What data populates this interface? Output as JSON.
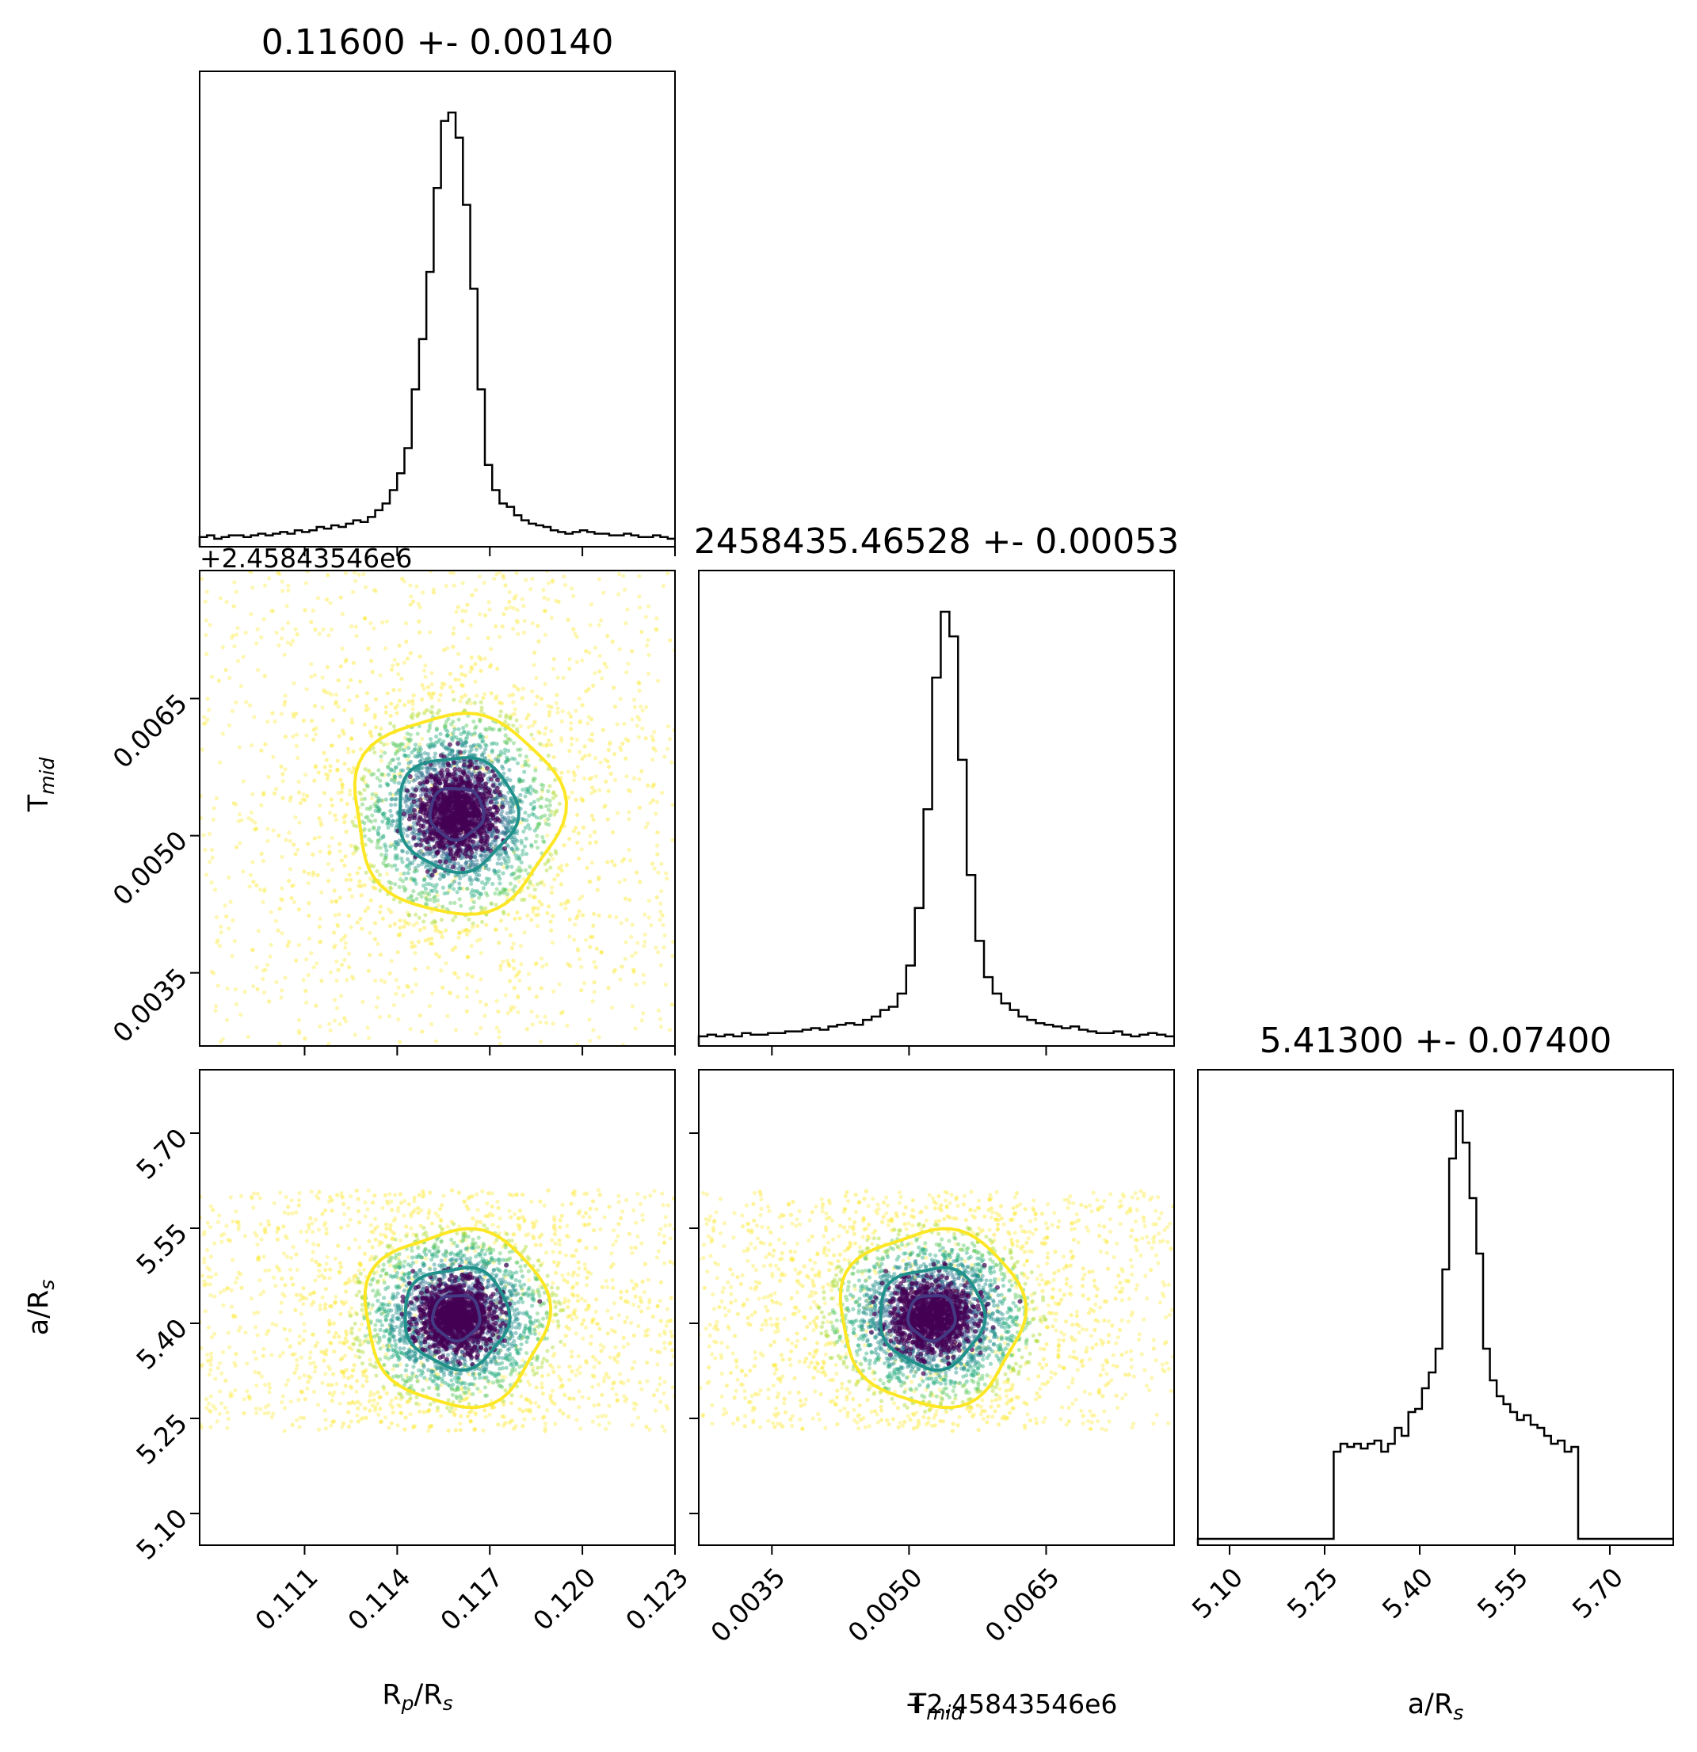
{
  "chart_data": {
    "type": "corner",
    "parameters": [
      {
        "key": "rprs",
        "label_main": "R",
        "label_sub": "p",
        "label_tail": "/R",
        "label_sub2": "s",
        "title": "0.11600 +- 0.00140",
        "range": [
          0.1076,
          0.123
        ],
        "ticks": [
          0.111,
          0.114,
          0.117,
          0.12,
          0.123
        ],
        "tick_labels": [
          "0.111",
          "0.114",
          "0.117",
          "0.120",
          "0.123"
        ],
        "median": 0.11592,
        "width": 0.0007,
        "spread": 0.0021
      },
      {
        "key": "tmid",
        "label_main": "T",
        "label_sub": "mid",
        "label_tail": "",
        "label_sub2": "",
        "title": "2458435.46528 +- 0.00053",
        "offset_text": "+2.45843546e6",
        "range": [
          0.0027,
          0.0079
        ],
        "ticks": [
          0.0035,
          0.005,
          0.0065
        ],
        "tick_labels": [
          "0.0035",
          "0.0050",
          "0.0065"
        ],
        "median": 0.00525,
        "width": 0.00025,
        "spread": 0.0008
      },
      {
        "key": "ars",
        "label_main": "a/R",
        "label_sub": "s",
        "label_tail": "",
        "label_sub2": "",
        "title": "5.41300 +- 0.07400",
        "range": [
          5.05,
          5.8
        ],
        "ticks": [
          5.1,
          5.25,
          5.4,
          5.55,
          5.7
        ],
        "tick_labels": [
          "5.10",
          "5.25",
          "5.40",
          "5.55",
          "5.70"
        ],
        "median": 5.41,
        "width": 0.03,
        "spread": 0.1,
        "prior": [
          5.23,
          5.61
        ]
      }
    ],
    "contour_levels": [
      {
        "name": "inner",
        "color": "#443983",
        "rx": 0.45
      },
      {
        "name": "middle",
        "color": "#21918c",
        "rx": 1.0
      },
      {
        "name": "outer",
        "color": "#fde725",
        "rx": 1.75
      }
    ],
    "point_colors": [
      "#440154",
      "#472d7b",
      "#3b528b",
      "#2c728e",
      "#21918c",
      "#28ae80",
      "#5ec962",
      "#addc30",
      "#fde725"
    ],
    "histograms": {
      "rprs": [
        2,
        3,
        1,
        2,
        3,
        3,
        2,
        3,
        4,
        3,
        4,
        5,
        4,
        6,
        5,
        6,
        8,
        7,
        9,
        8,
        10,
        12,
        11,
        14,
        18,
        22,
        30,
        40,
        55,
        90,
        120,
        160,
        210,
        250,
        255,
        240,
        200,
        150,
        90,
        45,
        30,
        22,
        20,
        15,
        12,
        10,
        9,
        8,
        6,
        5,
        4,
        5,
        6,
        5,
        4,
        4,
        3,
        3,
        4,
        3,
        2,
        2,
        3,
        2,
        1
      ],
      "tmid": [
        2,
        3,
        2,
        3,
        2,
        4,
        3,
        3,
        4,
        4,
        5,
        5,
        6,
        7,
        6,
        8,
        9,
        10,
        9,
        12,
        14,
        18,
        20,
        28,
        45,
        80,
        140,
        220,
        260,
        245,
        170,
        100,
        60,
        38,
        28,
        22,
        18,
        14,
        12,
        10,
        9,
        8,
        7,
        8,
        6,
        5,
        4,
        4,
        5,
        3,
        2,
        3,
        4,
        3,
        2
      ],
      "ars": [
        0,
        0,
        0,
        0,
        0,
        0,
        0,
        0,
        0,
        0,
        0,
        0,
        0,
        0,
        0,
        0,
        0,
        0,
        0,
        0,
        55,
        60,
        58,
        60,
        57,
        60,
        62,
        55,
        60,
        70,
        65,
        80,
        82,
        95,
        105,
        120,
        170,
        240,
        270,
        250,
        215,
        180,
        120,
        100,
        90,
        85,
        80,
        75,
        78,
        72,
        70,
        65,
        60,
        62,
        55,
        58,
        0,
        0,
        0,
        0,
        0,
        0,
        0,
        0,
        0,
        0,
        0,
        0,
        0,
        0
      ]
    }
  }
}
